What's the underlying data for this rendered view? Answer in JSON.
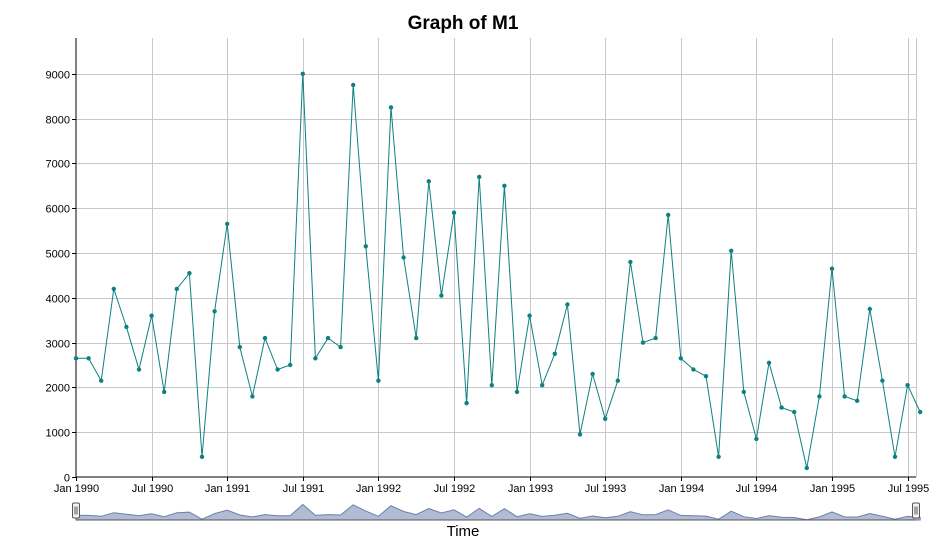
{
  "chart_data": {
    "type": "line",
    "title": "Graph of M1",
    "xlabel": "Time",
    "ylabel": "",
    "ylim": [
      0,
      9800
    ],
    "yticks": [
      0,
      1000,
      2000,
      3000,
      4000,
      5000,
      6000,
      7000,
      8000,
      9000
    ],
    "x_start": "Jan 1990",
    "xticks": [
      {
        "label": "Jan 1990",
        "index": 0
      },
      {
        "label": "Jul 1990",
        "index": 6
      },
      {
        "label": "Jan 1991",
        "index": 12
      },
      {
        "label": "Jul 1991",
        "index": 18
      },
      {
        "label": "Jan 1992",
        "index": 24
      },
      {
        "label": "Jul 1992",
        "index": 30
      },
      {
        "label": "Jan 1993",
        "index": 36
      },
      {
        "label": "Jul 1993",
        "index": 42
      },
      {
        "label": "Jan 1994",
        "index": 48
      },
      {
        "label": "Jul 1994",
        "index": 54
      },
      {
        "label": "Jan 1995",
        "index": 60
      },
      {
        "label": "Jul 1995",
        "index": 66
      }
    ],
    "grid": true,
    "color": "#0f8080",
    "navigator": {
      "fill": "#b0bcd4",
      "stroke": "#6f7fa8"
    },
    "series": [
      {
        "values": [
          2650,
          2650,
          2150,
          4200,
          3350,
          2400,
          3600,
          1900,
          4200,
          4550,
          450,
          3700,
          5650,
          2900,
          1800,
          3100,
          2400,
          2500,
          9000,
          2650,
          3100,
          2900,
          8750,
          5150,
          2150,
          8250,
          4900,
          3100,
          6600,
          4050,
          5900,
          1650,
          6700,
          2050,
          6500,
          1900,
          3600,
          2050,
          2750,
          3850,
          950,
          2300,
          1300,
          2150,
          4800,
          3000,
          3100,
          5850,
          2650,
          2400,
          2250,
          450,
          5050,
          1900,
          850,
          2550,
          1550,
          1450,
          200,
          1800,
          4650,
          1800,
          1700,
          3750,
          2150,
          450,
          2050,
          1450
        ]
      }
    ]
  }
}
